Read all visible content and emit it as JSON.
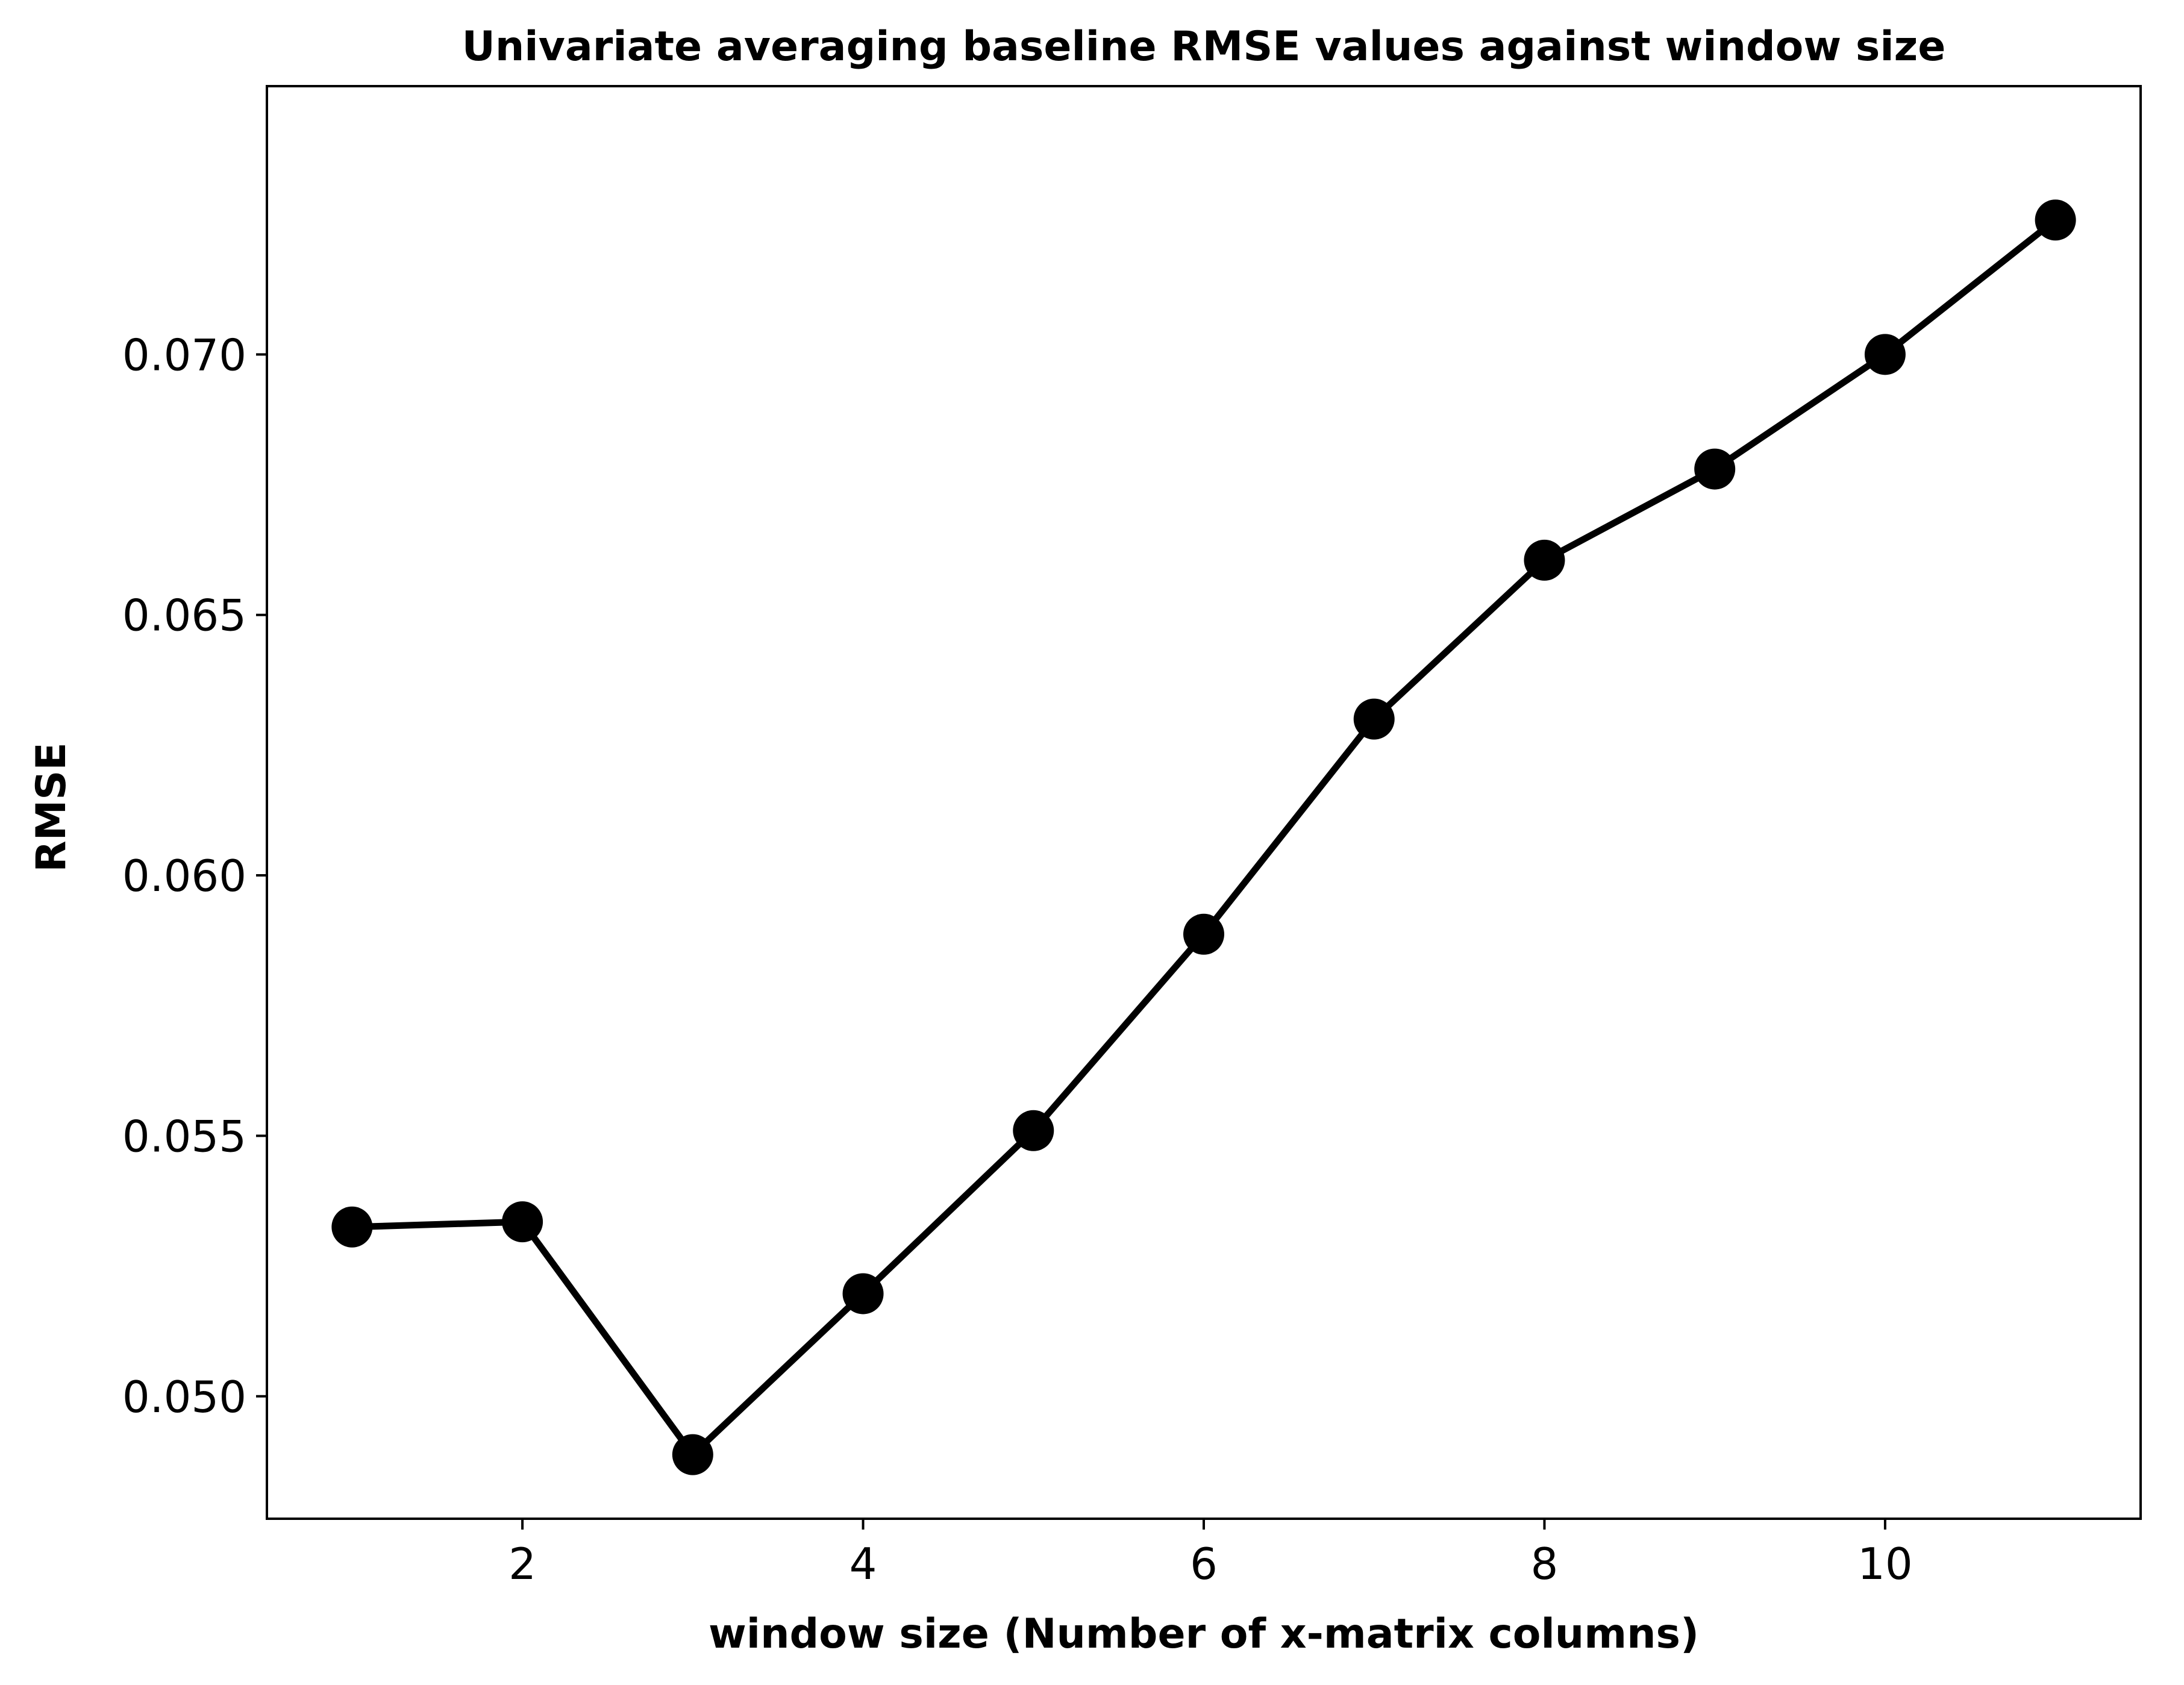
{
  "chart_data": {
    "type": "line",
    "title": "Univariate averaging baseline RMSE values against window size",
    "xlabel": "window size (Number of x-matrix columns)",
    "ylabel": "RMSE",
    "x": [
      1,
      2,
      3,
      4,
      5,
      6,
      7,
      8,
      9,
      10,
      11
    ],
    "series": [
      {
        "values": [
          0.05325,
          0.05335,
          0.04888,
          0.05197,
          0.0551,
          0.05887,
          0.063,
          0.06605,
          0.0678,
          0.07,
          0.07258
        ]
      }
    ],
    "xlim": [
      0.5,
      11.5
    ],
    "ylim": [
      0.04765,
      0.07515
    ],
    "xticks": [
      2,
      4,
      6,
      8,
      10
    ],
    "xtick_labels": [
      "2",
      "4",
      "6",
      "8",
      "10"
    ],
    "yticks": [
      0.05,
      0.055,
      0.06,
      0.065,
      0.07
    ],
    "ytick_labels": [
      "0.050",
      "0.055",
      "0.060",
      "0.065",
      "0.070"
    ],
    "grid": false,
    "line_color": "#000000",
    "marker": "circle"
  }
}
